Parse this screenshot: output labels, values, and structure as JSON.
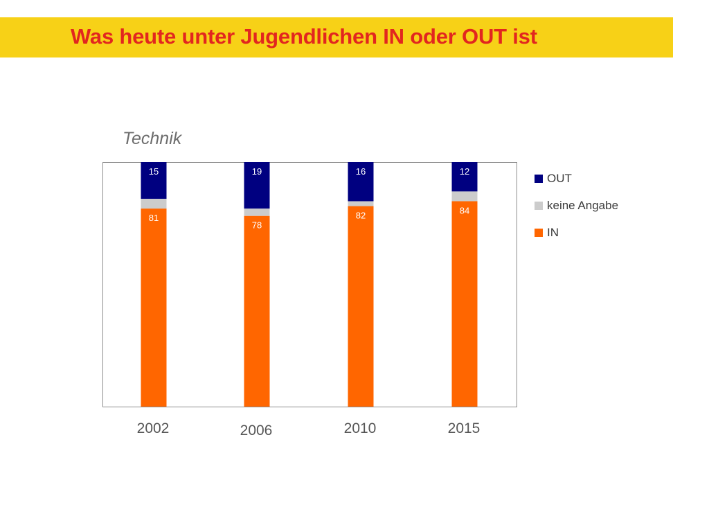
{
  "header": {
    "title": "Was heute unter Jugendlichen IN oder OUT ist"
  },
  "chart_data": {
    "type": "bar",
    "stacked": true,
    "title": "Technik",
    "categories": [
      "2002",
      "2006",
      "2010",
      "2015"
    ],
    "series": [
      {
        "name": "IN",
        "values": [
          81,
          78,
          82,
          84
        ],
        "color": "#ff6600"
      },
      {
        "name": "keine Angabe",
        "values": [
          4,
          3,
          2,
          4
        ],
        "color": "#cccccc"
      },
      {
        "name": "OUT",
        "values": [
          15,
          19,
          16,
          12
        ],
        "color": "#000080"
      }
    ],
    "legend_order": [
      "OUT",
      "keine Angabe",
      "IN"
    ],
    "ylim": [
      0,
      100
    ],
    "grid": false,
    "legend_position": "right",
    "data_labels": {
      "IN": [
        "81",
        "78",
        "82",
        "84"
      ],
      "OUT": [
        "15",
        "19",
        "16",
        "12"
      ]
    }
  }
}
